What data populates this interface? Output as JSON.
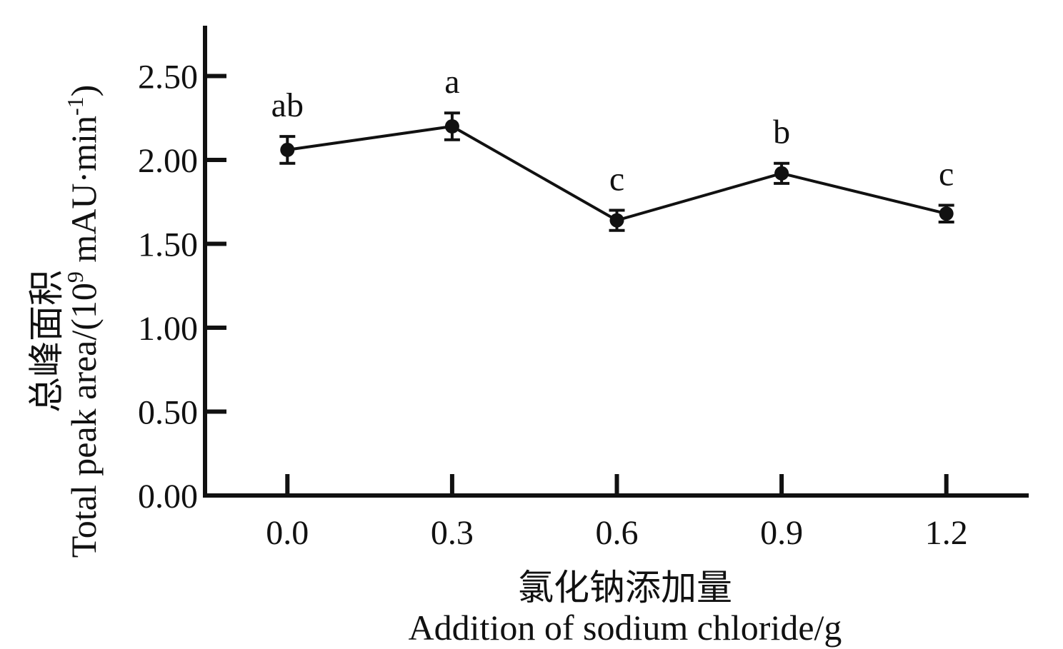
{
  "chart_data": {
    "type": "line",
    "x_ticks": [
      "0.0",
      "0.3",
      "0.6",
      "0.9",
      "1.2"
    ],
    "y_ticks": [
      "0.00",
      "0.50",
      "1.00",
      "1.50",
      "2.00",
      "2.50"
    ],
    "x": [
      0.0,
      0.3,
      0.6,
      0.9,
      1.2
    ],
    "xlim": [
      -0.15,
      1.35
    ],
    "ylim": [
      0.0,
      2.8
    ],
    "series": [
      {
        "values": [
          2.06,
          2.2,
          1.64,
          1.92,
          1.68
        ],
        "errors": [
          0.08,
          0.08,
          0.06,
          0.06,
          0.05
        ],
        "labels": [
          "ab",
          "a",
          "c",
          "b",
          "c"
        ],
        "color": "#111111"
      }
    ],
    "xlabel_cn": "氯化钠添加量",
    "xlabel_en": "Addition of sodium chloride/g",
    "ylabel_line1": "总峰面积",
    "ylabel_line2": "Total peak area/(10",
    "ylabel_exp": "9",
    "ylabel_tail": " mAU·min",
    "ylabel_tail_exp": "-1",
    "ylabel_close": ")",
    "grid": false,
    "legend": "none"
  }
}
